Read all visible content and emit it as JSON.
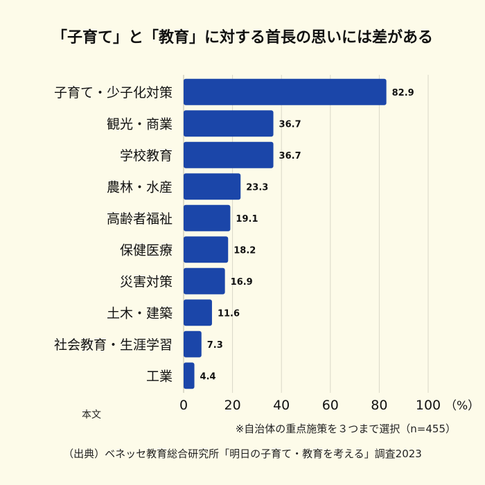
{
  "title": "「子育て」と「教育」に対する首長の思いには差がある",
  "side_note": "本文",
  "footnote": "※自治体の重点施策を３つまで選択（n=455）",
  "source": "（出典）ベネッセ教育総合研究所「明日の子育て・教育を考える」調査2023",
  "chart_data": {
    "type": "bar",
    "orientation": "horizontal",
    "categories": [
      "子育て・少子化対策",
      "観光・商業",
      "学校教育",
      "農林・水産",
      "高齢者福祉",
      "保健医療",
      "災害対策",
      "土木・建築",
      "社会教育・生涯学習",
      "工業"
    ],
    "values": [
      82.9,
      36.7,
      36.7,
      23.3,
      19.1,
      18.2,
      16.9,
      11.6,
      7.3,
      4.4
    ],
    "xlim": [
      0,
      100
    ],
    "xticks": [
      0,
      20,
      40,
      60,
      80,
      100
    ],
    "x_unit": "（%）",
    "grid": true,
    "bar_color": "#1b46a9"
  }
}
